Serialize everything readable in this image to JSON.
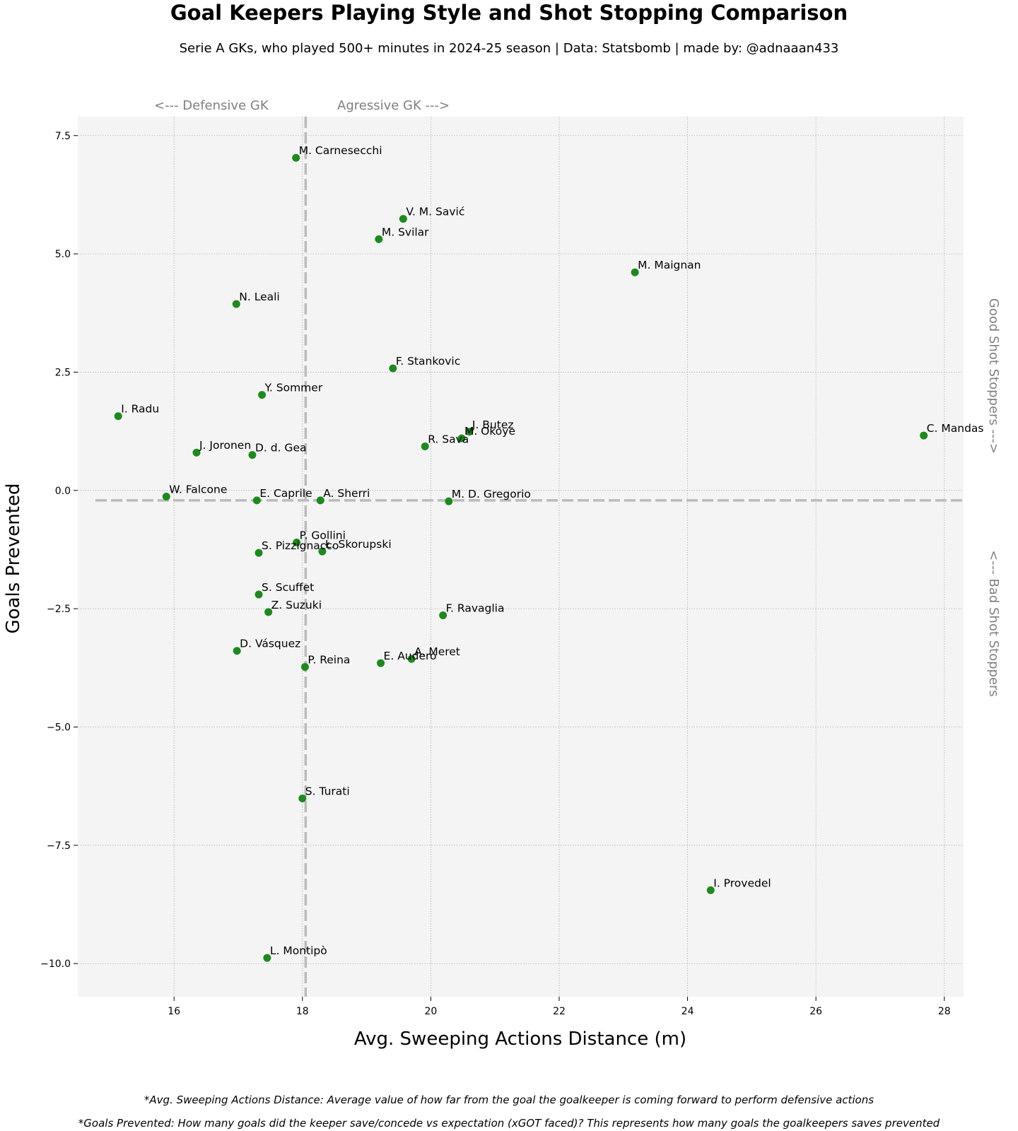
{
  "title": "Goal Keepers Playing Style and Shot Stopping Comparison",
  "subtitle": "Serie A GKs, who played 500+ minutes in 2024-25 season  |  Data: Statsbomb  |  made by: @adnaaan433",
  "quadrant_labels": {
    "left": "<--- Defensive GK",
    "right": "Agressive GK --->",
    "top": "Good Shot Stoppers --->",
    "bottom": "<--- Bad Shot Stoppers"
  },
  "footnotes": [
    "*Avg. Sweeping Actions Distance: Average value of how far from the goal the goalkeeper is coming forward to perform defensive actions",
    "*Goals Prevented: How many goals did the keeper save/concede vs expectation (xGOT faced)? This represents how many goals the goalkeepers saves prevented"
  ],
  "colors": {
    "point": "#1e8a1e",
    "plot_background": "#f4f4f4",
    "reference_line": "#bbbbbb",
    "grid": "#b0b0b0"
  },
  "chart_data": {
    "type": "scatter",
    "title": "Goal Keepers Playing Style and Shot Stopping Comparison",
    "xlabel": "Avg. Sweeping Actions Distance (m)",
    "ylabel": "Goals Prevented",
    "xlim": [
      14.5,
      28.3
    ],
    "ylim": [
      -10.7,
      7.9
    ],
    "x_ticks": [
      16,
      18,
      20,
      22,
      24,
      26,
      28
    ],
    "y_ticks": [
      7.5,
      5.0,
      2.5,
      0.0,
      -2.5,
      -5.0,
      -7.5,
      -10.0
    ],
    "x_tick_labels": [
      "16",
      "18",
      "20",
      "22",
      "24",
      "26",
      "28"
    ],
    "y_tick_labels": [
      "7.5",
      "5.0",
      "2.5",
      "0.0",
      "−2.5",
      "−5.0",
      "−7.5",
      "−10.0"
    ],
    "grid": true,
    "reference_lines": {
      "x": 18.05,
      "y": -0.21
    },
    "points": [
      {
        "name": "M. Carnesecchi",
        "x": 17.9,
        "y": 7.03
      },
      {
        "name": "V. M. Savić",
        "x": 19.57,
        "y": 5.74
      },
      {
        "name": "M. Svilar",
        "x": 19.19,
        "y": 5.31
      },
      {
        "name": "M. Maignan",
        "x": 23.18,
        "y": 4.61
      },
      {
        "name": "N. Leali",
        "x": 16.97,
        "y": 3.94
      },
      {
        "name": "F. Stankovic",
        "x": 19.41,
        "y": 2.58
      },
      {
        "name": "Y. Sommer",
        "x": 17.37,
        "y": 2.02
      },
      {
        "name": "I. Radu",
        "x": 15.13,
        "y": 1.57
      },
      {
        "name": "J. Butez",
        "x": 20.6,
        "y": 1.24
      },
      {
        "name": "M. Okoye",
        "x": 20.48,
        "y": 1.1
      },
      {
        "name": "C. Mandas",
        "x": 27.68,
        "y": 1.16
      },
      {
        "name": "R. Sava",
        "x": 19.91,
        "y": 0.93
      },
      {
        "name": "J. Joronen",
        "x": 16.35,
        "y": 0.8
      },
      {
        "name": "D. d. Gea",
        "x": 17.22,
        "y": 0.75
      },
      {
        "name": "W. Falcone",
        "x": 15.88,
        "y": -0.13
      },
      {
        "name": "E. Caprile",
        "x": 17.29,
        "y": -0.21
      },
      {
        "name": "A. Sherri",
        "x": 18.28,
        "y": -0.21
      },
      {
        "name": "M. D. Gregorio",
        "x": 20.28,
        "y": -0.23
      },
      {
        "name": "P. Gollini",
        "x": 17.91,
        "y": -1.1
      },
      {
        "name": "S. Pizzignacco",
        "x": 17.32,
        "y": -1.32
      },
      {
        "name": "Ł. Skorupski",
        "x": 18.31,
        "y": -1.29
      },
      {
        "name": "S. Scuffet",
        "x": 17.32,
        "y": -2.2
      },
      {
        "name": "Z. Suzuki",
        "x": 17.47,
        "y": -2.57
      },
      {
        "name": "F. Ravaglia",
        "x": 20.19,
        "y": -2.64
      },
      {
        "name": "D. Vásquez",
        "x": 16.98,
        "y": -3.39
      },
      {
        "name": "A. Meret",
        "x": 19.7,
        "y": -3.56
      },
      {
        "name": "E. Audero",
        "x": 19.22,
        "y": -3.65
      },
      {
        "name": "P. Reina",
        "x": 18.04,
        "y": -3.73
      },
      {
        "name": "S. Turati",
        "x": 18.0,
        "y": -6.51
      },
      {
        "name": "I. Provedel",
        "x": 24.36,
        "y": -8.45
      },
      {
        "name": "L. Montipò",
        "x": 17.45,
        "y": -9.88
      }
    ]
  }
}
